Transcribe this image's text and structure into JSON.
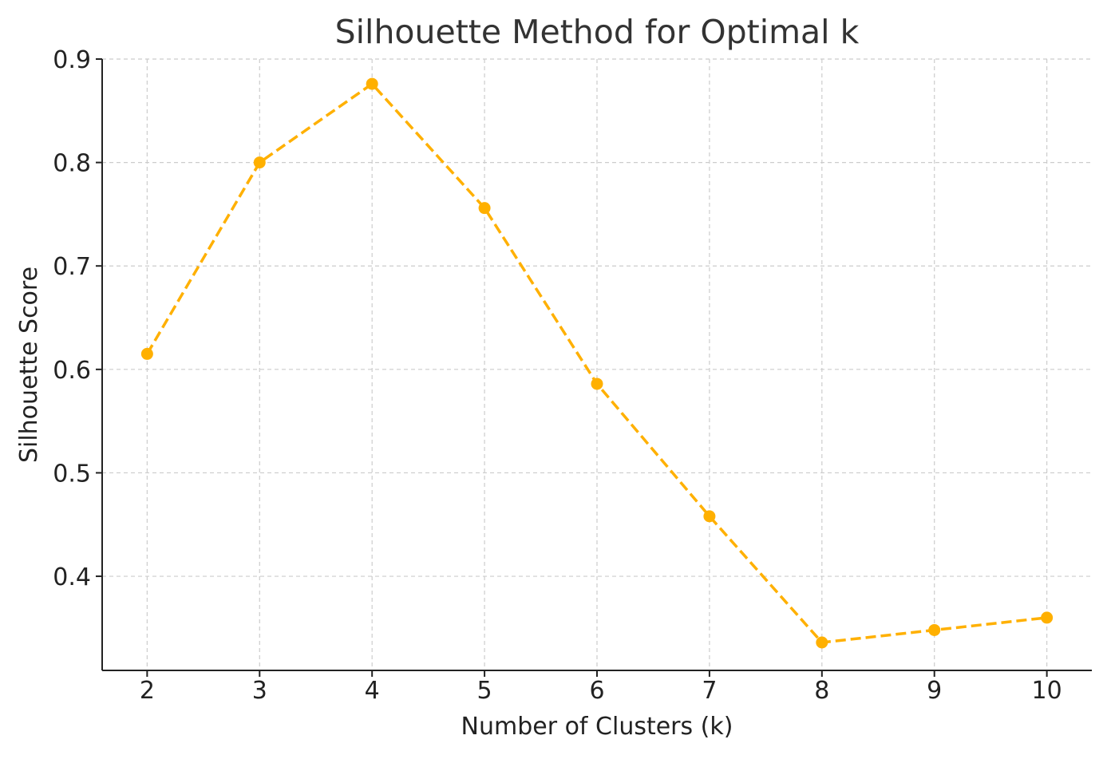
{
  "chart_data": {
    "type": "line",
    "title": "Silhouette Method for Optimal k",
    "xlabel": "Number of Clusters (k)",
    "ylabel": "Silhouette Score",
    "x": [
      2,
      3,
      4,
      5,
      6,
      7,
      8,
      9,
      10
    ],
    "series": [
      {
        "values": [
          0.615,
          0.8,
          0.876,
          0.756,
          0.586,
          0.458,
          0.336,
          0.348,
          0.36
        ],
        "color": "#FFB000",
        "line_style": "dashed",
        "marker": "circle"
      }
    ],
    "x_ticks": [
      "2",
      "3",
      "4",
      "5",
      "6",
      "7",
      "8",
      "9",
      "10"
    ],
    "y_ticks": [
      "0.4",
      "0.5",
      "0.6",
      "0.7",
      "0.8",
      "0.9"
    ],
    "y_tick_values": [
      0.4,
      0.5,
      0.6,
      0.7,
      0.8,
      0.9
    ],
    "xlim": [
      1.6,
      10.4
    ],
    "ylim": [
      0.309,
      0.9
    ],
    "grid": true,
    "colors": {
      "text": "#333333",
      "axis": "#222222",
      "grid": "#cccccc"
    }
  }
}
